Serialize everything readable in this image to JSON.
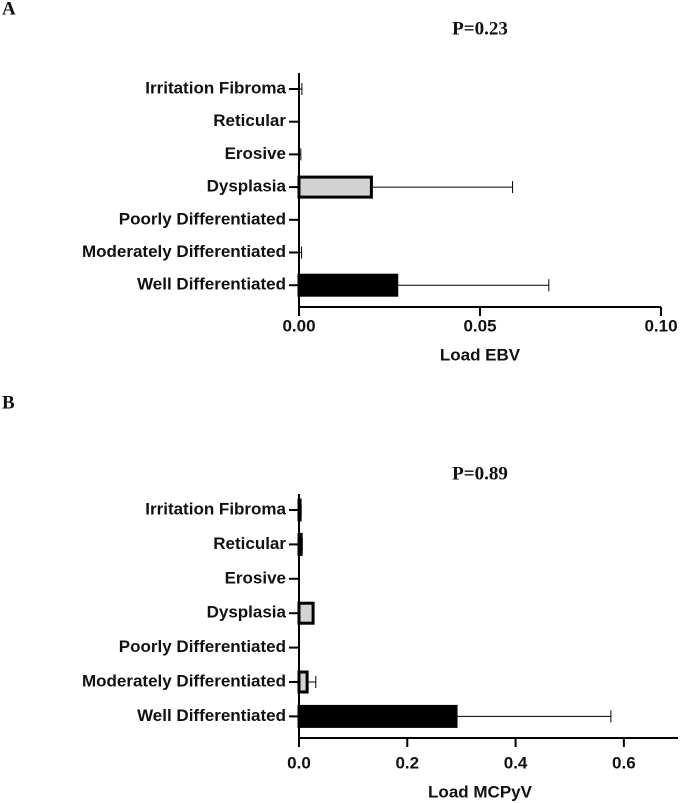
{
  "chart_data": [
    {
      "type": "bar",
      "orientation": "horizontal",
      "panel_label": "A",
      "title": "P=0.23",
      "x_label": "Load EBV",
      "categories": [
        "Irritation Fibroma",
        "Reticular",
        "Erosive",
        "Dysplasia",
        "Poorly Differentiated",
        "Moderately Differentiated",
        "Well Differentiated"
      ],
      "values": [
        0,
        0,
        0,
        0.02,
        0,
        0,
        0.027
      ],
      "errors": [
        0.0008,
        0,
        0.0005,
        0.039,
        0,
        0.0007,
        0.042
      ],
      "colors": [
        "#ffffff",
        "#ffffff",
        "#ffffff",
        "#d3d3d3",
        "#ffffff",
        "#ffffff",
        "#000000"
      ],
      "xlim": [
        0,
        0.1
      ],
      "xticks": [
        {
          "value": 0,
          "label": "0.00"
        },
        0.05,
        {
          "value": 0.1,
          "label": "0.10"
        }
      ]
    },
    {
      "type": "bar",
      "orientation": "horizontal",
      "panel_label": "B",
      "title": "P=0.89",
      "x_label": "Load MCPyV",
      "categories": [
        "Irritation Fibroma",
        "Reticular",
        "Erosive",
        "Dysplasia",
        "Poorly Differentiated",
        "Moderately Differentiated",
        "Well Differentiated"
      ],
      "values": [
        0.002,
        0.004,
        0,
        0.026,
        0,
        0.015,
        0.29
      ],
      "errors": [
        0.002,
        0.002,
        0,
        0,
        0,
        0.016,
        0.286
      ],
      "colors": [
        "#ffffff",
        "#ffffff",
        "#ffffff",
        "#d3d3d3",
        "#ffffff",
        "#d3d3d3",
        "#000000"
      ],
      "xlim": [
        0,
        0.7
      ],
      "xticks": [
        {
          "value": 0,
          "label": "0.0"
        },
        0.2,
        0.4,
        0.6
      ]
    }
  ]
}
